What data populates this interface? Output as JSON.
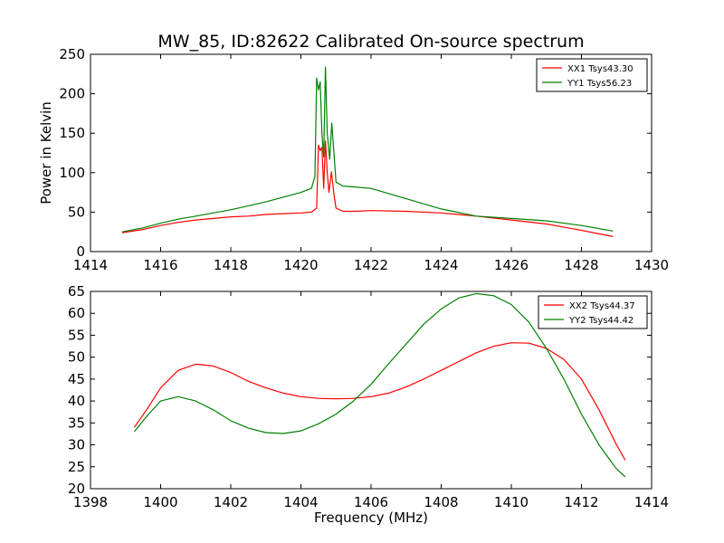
{
  "chart_data": [
    {
      "type": "line",
      "title": "MW_85, ID:82622 Calibrated On-source spectrum",
      "xlabel": "",
      "ylabel": "Power in Kelvin",
      "xlim": [
        1414,
        1430
      ],
      "ylim": [
        0,
        250
      ],
      "xticks": [
        "1414",
        "1416",
        "1418",
        "1420",
        "1422",
        "1424",
        "1426",
        "1428",
        "1430"
      ],
      "yticks": [
        "0",
        "50",
        "100",
        "150",
        "200",
        "250"
      ],
      "legend_position": "top-right",
      "series": [
        {
          "name": "XX1 Tsys43.30",
          "color": "#ff0000",
          "points": [
            [
              1414.9,
              24
            ],
            [
              1415.5,
              28
            ],
            [
              1416,
              33
            ],
            [
              1416.5,
              37
            ],
            [
              1417,
              40
            ],
            [
              1417.5,
              42
            ],
            [
              1418,
              44
            ],
            [
              1418.5,
              45
            ],
            [
              1419,
              47
            ],
            [
              1419.5,
              48
            ],
            [
              1420,
              49
            ],
            [
              1420.3,
              50
            ],
            [
              1420.45,
              55
            ],
            [
              1420.5,
              135
            ],
            [
              1420.55,
              128
            ],
            [
              1420.6,
              132
            ],
            [
              1420.65,
              80
            ],
            [
              1420.7,
              140
            ],
            [
              1420.75,
              100
            ],
            [
              1420.8,
              75
            ],
            [
              1420.87,
              101
            ],
            [
              1420.95,
              70
            ],
            [
              1421,
              55
            ],
            [
              1421.2,
              51
            ],
            [
              1421.5,
              51
            ],
            [
              1422,
              52
            ],
            [
              1423,
              51
            ],
            [
              1424,
              49
            ],
            [
              1425,
              45
            ],
            [
              1426,
              40
            ],
            [
              1427,
              35
            ],
            [
              1428,
              27
            ],
            [
              1428.9,
              19
            ]
          ]
        },
        {
          "name": "YY1 Tsys56.23",
          "color": "#008000",
          "points": [
            [
              1414.9,
              25
            ],
            [
              1415.5,
              30
            ],
            [
              1416,
              36
            ],
            [
              1416.5,
              41
            ],
            [
              1417,
              45
            ],
            [
              1417.5,
              49
            ],
            [
              1418,
              53
            ],
            [
              1418.5,
              58
            ],
            [
              1419,
              63
            ],
            [
              1419.5,
              69
            ],
            [
              1420,
              75
            ],
            [
              1420.3,
              80
            ],
            [
              1420.4,
              95
            ],
            [
              1420.45,
              220
            ],
            [
              1420.5,
              205
            ],
            [
              1420.55,
              215
            ],
            [
              1420.6,
              150
            ],
            [
              1420.65,
              120
            ],
            [
              1420.7,
              234
            ],
            [
              1420.75,
              150
            ],
            [
              1420.82,
              117
            ],
            [
              1420.88,
              163
            ],
            [
              1420.95,
              120
            ],
            [
              1421,
              88
            ],
            [
              1421.2,
              83
            ],
            [
              1421.5,
              82
            ],
            [
              1422,
              80
            ],
            [
              1423,
              67
            ],
            [
              1424,
              54
            ],
            [
              1425,
              45
            ],
            [
              1426,
              42
            ],
            [
              1427,
              39
            ],
            [
              1428,
              33
            ],
            [
              1428.9,
              26
            ]
          ]
        }
      ]
    },
    {
      "type": "line",
      "title": "",
      "xlabel": "Frequency (MHz)",
      "ylabel": "",
      "xlim": [
        1398,
        1414
      ],
      "ylim": [
        20,
        65
      ],
      "xticks": [
        "1398",
        "1400",
        "1402",
        "1404",
        "1406",
        "1408",
        "1410",
        "1412",
        "1414"
      ],
      "yticks": [
        "20",
        "25",
        "30",
        "35",
        "40",
        "45",
        "50",
        "55",
        "60",
        "65"
      ],
      "legend_position": "top-right",
      "series": [
        {
          "name": "XX2 Tsys44.37",
          "color": "#ff0000",
          "points": [
            [
              1399.25,
              34
            ],
            [
              1399.6,
              38
            ],
            [
              1400,
              43
            ],
            [
              1400.5,
              47
            ],
            [
              1401,
              48.4
            ],
            [
              1401.5,
              48
            ],
            [
              1402,
              46.5
            ],
            [
              1402.5,
              44.5
            ],
            [
              1403,
              43
            ],
            [
              1403.5,
              41.8
            ],
            [
              1404,
              41
            ],
            [
              1404.5,
              40.6
            ],
            [
              1405,
              40.5
            ],
            [
              1405.5,
              40.6
            ],
            [
              1406,
              41
            ],
            [
              1406.5,
              41.8
            ],
            [
              1407,
              43.2
            ],
            [
              1407.5,
              45
            ],
            [
              1408,
              47
            ],
            [
              1408.5,
              49
            ],
            [
              1409,
              51
            ],
            [
              1409.5,
              52.5
            ],
            [
              1410,
              53.3
            ],
            [
              1410.5,
              53.2
            ],
            [
              1411,
              52
            ],
            [
              1411.5,
              49.5
            ],
            [
              1412,
              45
            ],
            [
              1412.5,
              38
            ],
            [
              1413,
              30
            ],
            [
              1413.25,
              26.5
            ]
          ]
        },
        {
          "name": "YY2 Tsys44.42",
          "color": "#008000",
          "points": [
            [
              1399.25,
              33
            ],
            [
              1399.6,
              36.5
            ],
            [
              1400,
              40
            ],
            [
              1400.5,
              41
            ],
            [
              1401,
              40
            ],
            [
              1401.5,
              38
            ],
            [
              1402,
              35.5
            ],
            [
              1402.5,
              33.8
            ],
            [
              1403,
              32.8
            ],
            [
              1403.5,
              32.6
            ],
            [
              1404,
              33.2
            ],
            [
              1404.5,
              34.8
            ],
            [
              1405,
              37
            ],
            [
              1405.5,
              40
            ],
            [
              1406,
              43.8
            ],
            [
              1406.5,
              48.5
            ],
            [
              1407,
              53
            ],
            [
              1407.5,
              57.5
            ],
            [
              1408,
              61
            ],
            [
              1408.5,
              63.5
            ],
            [
              1409,
              64.5
            ],
            [
              1409.5,
              64
            ],
            [
              1410,
              62
            ],
            [
              1410.5,
              58
            ],
            [
              1411,
              52
            ],
            [
              1411.5,
              45
            ],
            [
              1412,
              37
            ],
            [
              1412.5,
              30
            ],
            [
              1413,
              24.5
            ],
            [
              1413.25,
              22.7
            ]
          ]
        }
      ]
    }
  ]
}
